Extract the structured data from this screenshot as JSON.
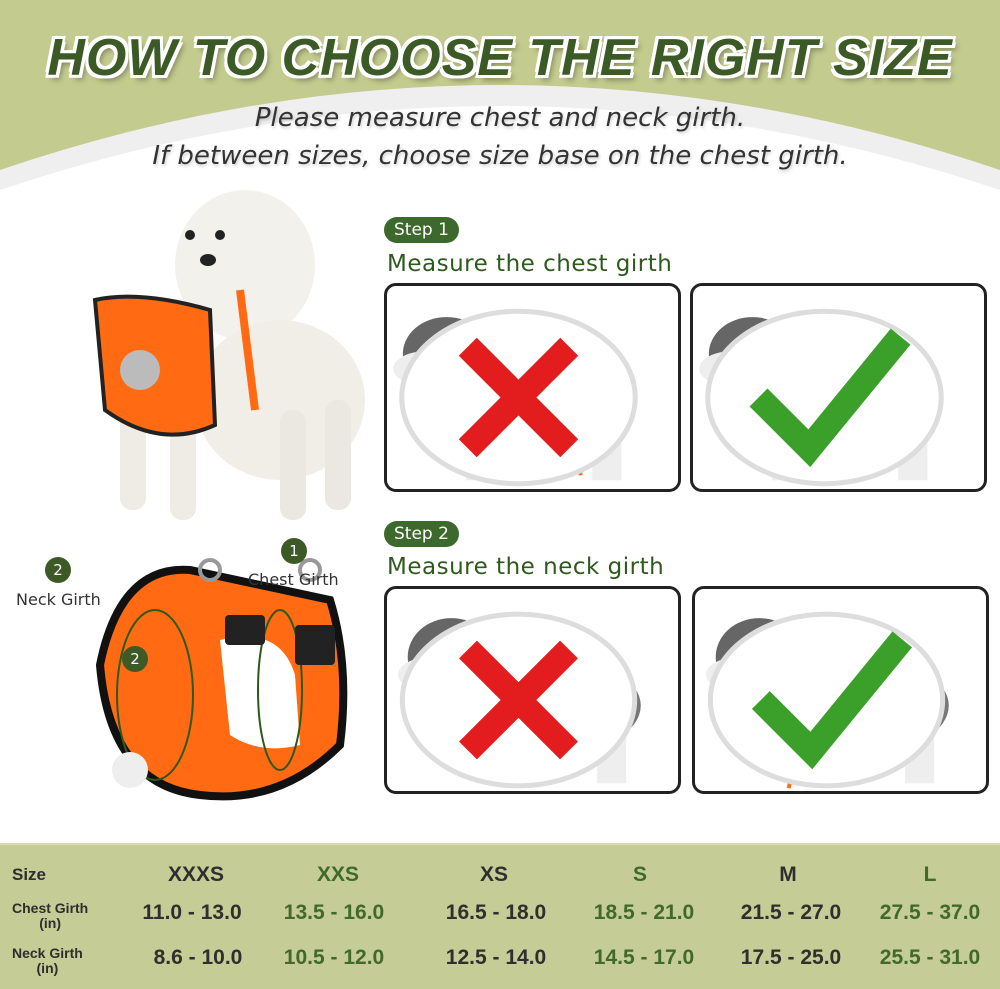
{
  "header": {
    "title": "HOW TO CHOOSE THE RIGHT SIZE",
    "subtitle_line1": "Please measure chest and neck girth.",
    "subtitle_line2": "If between sizes, choose size base on the chest girth."
  },
  "steps": [
    {
      "badge": "Step 1",
      "text": "Measure the chest girth",
      "wrong_icon": "red-x-icon",
      "right_icon": "green-check-icon"
    },
    {
      "badge": "Step 2",
      "text": "Measure the neck girth",
      "wrong_icon": "red-x-icon",
      "right_icon": "green-check-icon"
    }
  ],
  "harness_labels": {
    "neck_num": "2",
    "neck": "Neck Girth",
    "chest_num": "1",
    "chest": "Chest Girth",
    "inner_num": "2"
  },
  "size_table": {
    "row_labels": [
      {
        "l1": "Size",
        "l2": ""
      },
      {
        "l1": "Chest Girth",
        "l2": "(in)"
      },
      {
        "l1": "Neck Girth",
        "l2": "(in)"
      }
    ],
    "sizes": [
      "XXXS",
      "XXS",
      "XS",
      "S",
      "M",
      "L"
    ],
    "chest": [
      "11.0 - 13.0",
      "13.5 - 16.0",
      "16.5 - 18.0",
      "18.5 - 21.0",
      "21.5 - 27.0",
      "27.5 - 37.0"
    ],
    "neck": [
      "8.6 - 10.0",
      "10.5 - 12.0",
      "12.5 - 14.0",
      "14.5 - 17.0",
      "17.5 - 25.0",
      "25.5 - 31.0"
    ]
  },
  "colors": {
    "brand_green": "#3b5a26",
    "background_green": "#c3cb8e",
    "harness_orange": "#ff6a13"
  }
}
